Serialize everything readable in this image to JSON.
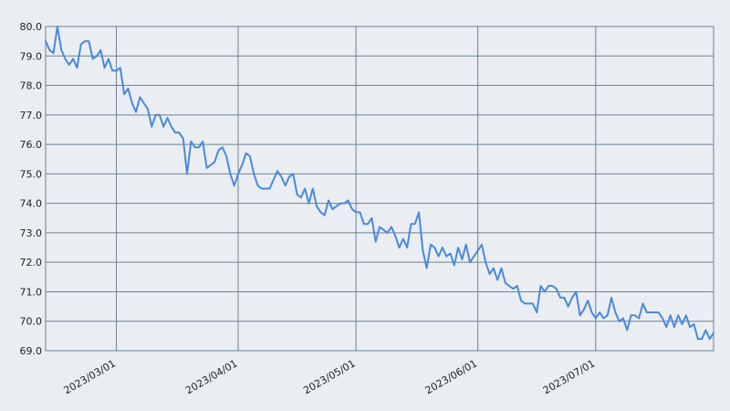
{
  "chart_data": {
    "type": "line",
    "title": "",
    "xlabel": "",
    "ylabel": "",
    "x_start": "2023-02-11",
    "x_end": "2023-07-31",
    "ylim": [
      69.0,
      80.0
    ],
    "y_ticks": [
      "69.0",
      "70.0",
      "71.0",
      "72.0",
      "73.0",
      "74.0",
      "75.0",
      "76.0",
      "77.0",
      "78.0",
      "79.0",
      "80.0"
    ],
    "x_ticks": [
      {
        "date": "2023-03-01",
        "label": "2023/03/01"
      },
      {
        "date": "2023-04-01",
        "label": "2023/04/01"
      },
      {
        "date": "2023-05-01",
        "label": "2023/05/01"
      },
      {
        "date": "2023-06-01",
        "label": "2023/06/01"
      },
      {
        "date": "2023-07-01",
        "label": "2023/07/01"
      }
    ],
    "grid": true,
    "colors": {
      "background": "#eaeef2",
      "grid": "#6d8194",
      "line": "#4a89dc",
      "text": "#222222"
    },
    "series": [
      {
        "values": [
          79.5,
          79.2,
          79.1,
          80.0,
          79.2,
          78.9,
          78.7,
          78.9,
          78.6,
          79.4,
          79.5,
          79.5,
          78.9,
          79.0,
          79.2,
          78.6,
          78.9,
          78.5,
          78.5,
          78.6,
          77.7,
          77.9,
          77.4,
          77.1,
          77.6,
          77.4,
          77.2,
          76.6,
          77.0,
          77.0,
          76.6,
          76.9,
          76.6,
          76.4,
          76.4,
          76.2,
          75.0,
          76.1,
          75.9,
          75.9,
          76.1,
          75.2,
          75.3,
          75.4,
          75.8,
          75.9,
          75.6,
          75.0,
          74.6,
          75.0,
          75.3,
          75.7,
          75.6,
          75.0,
          74.6,
          74.5,
          74.5,
          74.5,
          74.8,
          75.1,
          74.9,
          74.6,
          74.9,
          75.0,
          74.3,
          74.2,
          74.5,
          74.0,
          74.5,
          73.9,
          73.7,
          73.6,
          74.1,
          73.8,
          73.9,
          74.0,
          74.0,
          74.1,
          73.8,
          73.7,
          73.7,
          73.3,
          73.3,
          73.5,
          72.7,
          73.2,
          73.1,
          73.0,
          73.2,
          72.9,
          72.5,
          72.8,
          72.5,
          73.3,
          73.3,
          73.7,
          72.4,
          71.8,
          72.6,
          72.5,
          72.2,
          72.5,
          72.2,
          72.3,
          71.9,
          72.5,
          72.1,
          72.6,
          72.0,
          72.2,
          72.4,
          72.6,
          72.0,
          71.6,
          71.8,
          71.4,
          71.8,
          71.3,
          71.2,
          71.1,
          71.2,
          70.7,
          70.6,
          70.6,
          70.6,
          70.3,
          71.2,
          71.0,
          71.2,
          71.2,
          71.1,
          70.8,
          70.8,
          70.5,
          70.8,
          71.0,
          70.2,
          70.4,
          70.7,
          70.3,
          70.1,
          70.3,
          70.1,
          70.2,
          70.8,
          70.3,
          70.0,
          70.1,
          69.7,
          70.2,
          70.2,
          70.1,
          70.6,
          70.3,
          70.3,
          70.3,
          70.3,
          70.1,
          69.8,
          70.2,
          69.8,
          70.2,
          69.9,
          70.2,
          69.8,
          69.9,
          69.4,
          69.4,
          69.7,
          69.4,
          69.6
        ]
      }
    ]
  }
}
